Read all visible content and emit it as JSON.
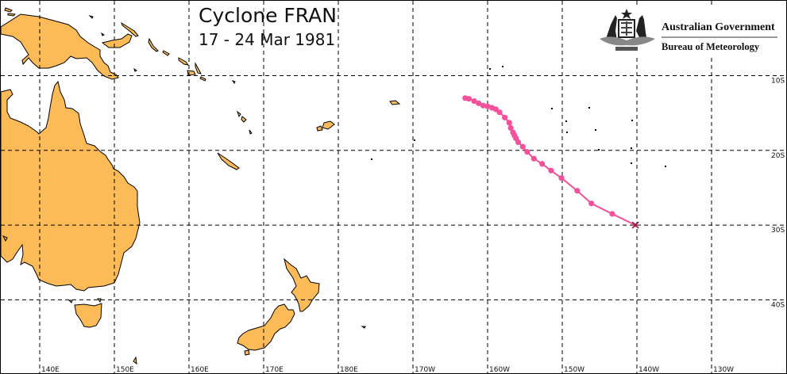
{
  "title": "Cyclone FRAN",
  "subtitle": "17 - 24 Mar 1981",
  "logo": {
    "line1": "Australian Government",
    "line2": "Bureau of Meteorology"
  },
  "colors": {
    "land": "#fdbb58",
    "track": "#f5509a",
    "grid": "#000000",
    "end_marker": "#8b1a3a"
  },
  "grid": {
    "lon_labels": [
      "140E",
      "150E",
      "160E",
      "170E",
      "180E",
      "170W",
      "160W",
      "150W",
      "140W",
      "130W"
    ],
    "lon_values": [
      140,
      150,
      160,
      170,
      180,
      190,
      200,
      210,
      220,
      230
    ],
    "lat_labels": [
      "10S",
      "20S",
      "30S",
      "40S"
    ],
    "lat_values": [
      10,
      20,
      30,
      40
    ]
  },
  "track": {
    "units": "longitude degrees East (0-360), latitude degrees South",
    "points": [
      [
        197.0,
        13.0
      ],
      [
        197.5,
        13.1
      ],
      [
        198.2,
        13.4
      ],
      [
        198.8,
        13.7
      ],
      [
        199.4,
        14.0
      ],
      [
        200.0,
        14.1
      ],
      [
        200.6,
        14.3
      ],
      [
        201.1,
        14.5
      ],
      [
        201.6,
        14.9
      ],
      [
        202.3,
        15.6
      ],
      [
        202.9,
        16.3
      ],
      [
        203.1,
        17.0
      ],
      [
        203.4,
        17.6
      ],
      [
        203.6,
        18.0
      ],
      [
        203.8,
        18.4
      ],
      [
        204.1,
        18.9
      ],
      [
        204.7,
        19.5
      ],
      [
        205.3,
        20.2
      ],
      [
        206.2,
        21.1
      ],
      [
        207.3,
        21.8
      ],
      [
        208.5,
        22.7
      ],
      [
        209.9,
        23.7
      ],
      [
        212.0,
        25.4
      ],
      [
        213.9,
        27.1
      ],
      [
        216.7,
        28.5
      ],
      [
        219.8,
        30.0
      ]
    ],
    "end_marker": "x-icon"
  }
}
